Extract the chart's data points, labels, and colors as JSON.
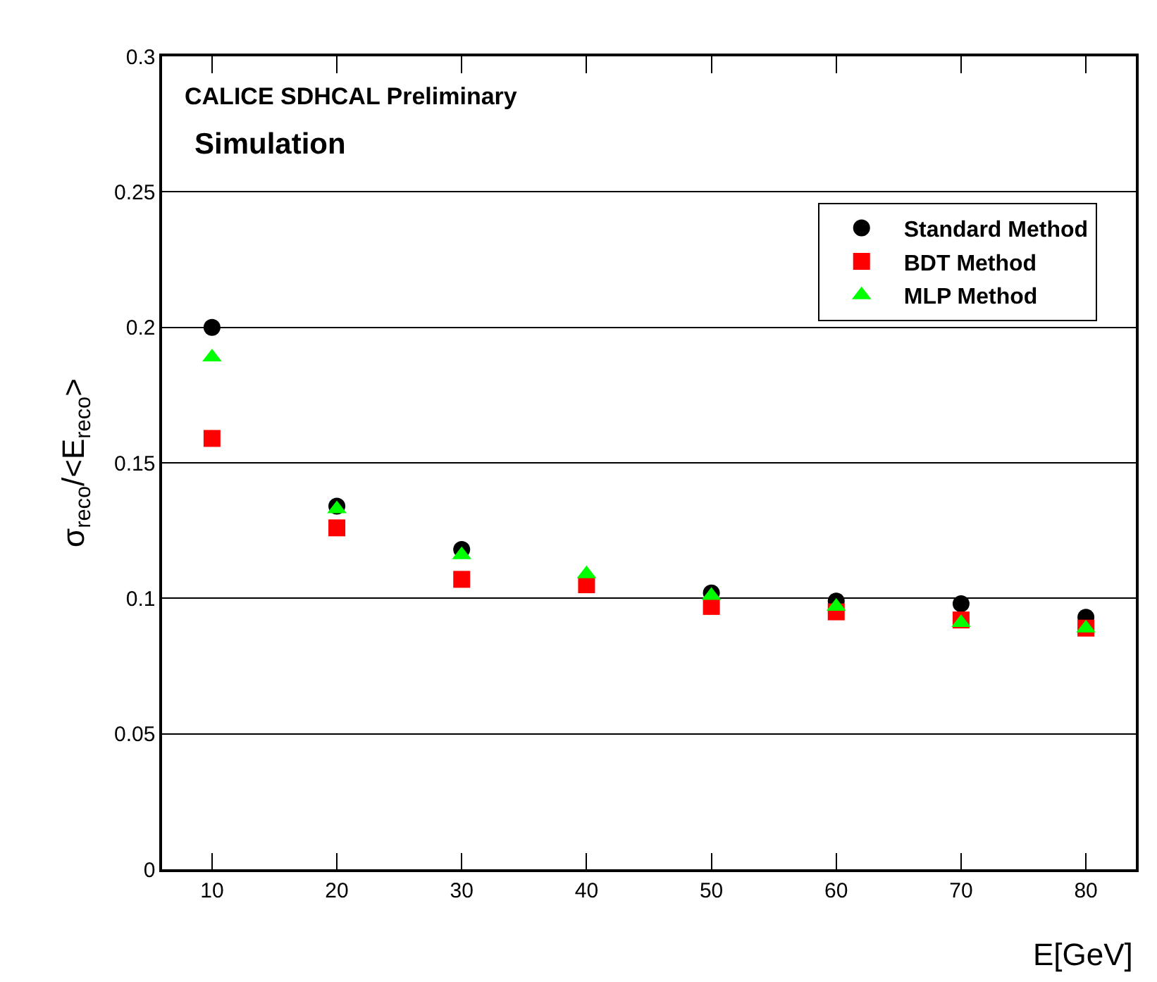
{
  "chart_data": {
    "type": "scatter",
    "xlabel": "E[GeV]",
    "ylabel": "σ$_{reco}$/<E$_{reco}$>",
    "annotations": [
      "CALICE SDHCAL Preliminary",
      "Simulation"
    ],
    "x": [
      10,
      20,
      30,
      40,
      50,
      60,
      70,
      80
    ],
    "series": [
      {
        "name": "Standard Method",
        "color": "#000000",
        "marker": "circle",
        "values": [
          0.2,
          0.134,
          0.118,
          null,
          0.102,
          0.099,
          0.098,
          0.093
        ]
      },
      {
        "name": "BDT Method",
        "color": "#ff0000",
        "marker": "square",
        "values": [
          0.159,
          0.126,
          0.107,
          0.105,
          0.097,
          0.095,
          0.092,
          0.089
        ]
      },
      {
        "name": "MLP Method",
        "color": "#00ff00",
        "marker": "triangle",
        "values": [
          0.189,
          0.133,
          0.116,
          0.109,
          0.101,
          0.097,
          0.091,
          0.089
        ]
      }
    ],
    "xlim": [
      6,
      84
    ],
    "xticks": [
      10,
      20,
      30,
      40,
      50,
      60,
      70,
      80
    ],
    "ylim": [
      0,
      0.3
    ],
    "yticks": [
      0,
      0.05,
      0.1,
      0.15,
      0.2,
      0.25,
      0.3
    ],
    "grid": "y",
    "legend": "top right"
  }
}
